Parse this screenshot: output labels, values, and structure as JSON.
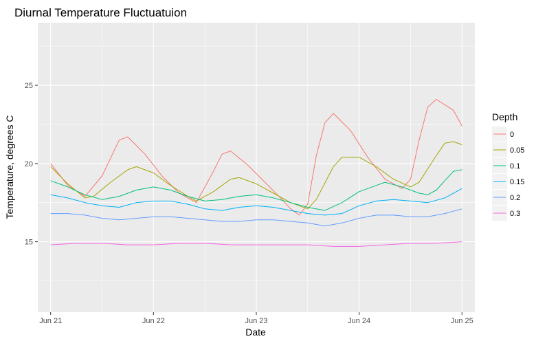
{
  "chart_data": {
    "type": "line",
    "title": "Diurnal Temperature Fluctuatuion",
    "xlabel": "Date",
    "ylabel": "Temperature, degrees C",
    "x_ticks": [
      "Jun 21",
      "Jun 22",
      "Jun 23",
      "Jun 24",
      "Jun 25"
    ],
    "y_ticks": [
      15,
      20,
      25
    ],
    "xlim": [
      "2016-06-20T21:00",
      "2016-06-25T03:00"
    ],
    "ylim": [
      10.5,
      29
    ],
    "grid": true,
    "legend": {
      "title": "Depth",
      "position": "right"
    },
    "series": [
      {
        "name": "0",
        "color": "#F8766D",
        "points": [
          [
            "06-21 00:00",
            20.0
          ],
          [
            "06-21 04:00",
            18.6
          ],
          [
            "06-21 08:00",
            17.9
          ],
          [
            "06-21 12:00",
            19.2
          ],
          [
            "06-21 16:00",
            21.5
          ],
          [
            "06-21 18:00",
            21.7
          ],
          [
            "06-21 22:00",
            20.6
          ],
          [
            "06-22 02:00",
            19.2
          ],
          [
            "06-22 06:00",
            18.1
          ],
          [
            "06-22 10:00",
            17.5
          ],
          [
            "06-22 14:00",
            19.5
          ],
          [
            "06-22 16:00",
            20.6
          ],
          [
            "06-22 18:00",
            20.8
          ],
          [
            "06-22 22:00",
            19.9
          ],
          [
            "06-23 02:00",
            18.8
          ],
          [
            "06-23 06:00",
            17.7
          ],
          [
            "06-23 08:00",
            17.1
          ],
          [
            "06-23 10:00",
            16.7
          ],
          [
            "06-23 12:00",
            17.4
          ],
          [
            "06-23 14:00",
            20.5
          ],
          [
            "06-23 16:00",
            22.6
          ],
          [
            "06-23 18:00",
            23.2
          ],
          [
            "06-23 22:00",
            22.1
          ],
          [
            "06-24 02:00",
            20.4
          ],
          [
            "06-24 06:00",
            19.0
          ],
          [
            "06-24 10:00",
            18.4
          ],
          [
            "06-24 12:00",
            19.0
          ],
          [
            "06-24 14:00",
            21.5
          ],
          [
            "06-24 16:00",
            23.6
          ],
          [
            "06-24 18:00",
            24.1
          ],
          [
            "06-24 22:00",
            23.4
          ],
          [
            "06-25 00:00",
            22.4
          ]
        ]
      },
      {
        "name": "0.05",
        "color": "#A3A500",
        "points": [
          [
            "06-21 00:00",
            19.8
          ],
          [
            "06-21 04:00",
            18.7
          ],
          [
            "06-21 08:00",
            17.8
          ],
          [
            "06-21 10:00",
            17.9
          ],
          [
            "06-21 14:00",
            18.8
          ],
          [
            "06-21 18:00",
            19.6
          ],
          [
            "06-21 20:00",
            19.8
          ],
          [
            "06-22 00:00",
            19.4
          ],
          [
            "06-22 04:00",
            18.6
          ],
          [
            "06-22 08:00",
            17.9
          ],
          [
            "06-22 10:00",
            17.6
          ],
          [
            "06-22 14:00",
            18.2
          ],
          [
            "06-22 18:00",
            19.0
          ],
          [
            "06-22 20:00",
            19.1
          ],
          [
            "06-23 00:00",
            18.7
          ],
          [
            "06-23 04:00",
            18.1
          ],
          [
            "06-23 08:00",
            17.5
          ],
          [
            "06-23 12:00",
            17.1
          ],
          [
            "06-23 14:00",
            17.7
          ],
          [
            "06-23 18:00",
            19.8
          ],
          [
            "06-23 20:00",
            20.4
          ],
          [
            "06-24 00:00",
            20.4
          ],
          [
            "06-24 04:00",
            19.8
          ],
          [
            "06-24 08:00",
            19.0
          ],
          [
            "06-24 12:00",
            18.5
          ],
          [
            "06-24 14:00",
            18.8
          ],
          [
            "06-24 18:00",
            20.5
          ],
          [
            "06-24 20:00",
            21.3
          ],
          [
            "06-24 22:00",
            21.4
          ],
          [
            "06-25 00:00",
            21.2
          ]
        ]
      },
      {
        "name": "0.1",
        "color": "#00BF7D",
        "points": [
          [
            "06-21 00:00",
            18.9
          ],
          [
            "06-21 04:00",
            18.5
          ],
          [
            "06-21 08:00",
            18.0
          ],
          [
            "06-21 12:00",
            17.7
          ],
          [
            "06-21 16:00",
            17.9
          ],
          [
            "06-21 20:00",
            18.3
          ],
          [
            "06-22 00:00",
            18.5
          ],
          [
            "06-22 04:00",
            18.3
          ],
          [
            "06-22 08:00",
            17.9
          ],
          [
            "06-22 12:00",
            17.6
          ],
          [
            "06-22 16:00",
            17.7
          ],
          [
            "06-22 20:00",
            17.9
          ],
          [
            "06-23 00:00",
            18.0
          ],
          [
            "06-23 04:00",
            17.8
          ],
          [
            "06-23 08:00",
            17.5
          ],
          [
            "06-23 12:00",
            17.2
          ],
          [
            "06-23 16:00",
            17.0
          ],
          [
            "06-23 20:00",
            17.5
          ],
          [
            "06-24 00:00",
            18.2
          ],
          [
            "06-24 04:00",
            18.6
          ],
          [
            "06-24 06:00",
            18.8
          ],
          [
            "06-24 10:00",
            18.5
          ],
          [
            "06-24 14:00",
            18.1
          ],
          [
            "06-24 16:00",
            18.0
          ],
          [
            "06-24 18:00",
            18.3
          ],
          [
            "06-24 20:00",
            18.9
          ],
          [
            "06-24 22:00",
            19.5
          ],
          [
            "06-25 00:00",
            19.6
          ]
        ]
      },
      {
        "name": "0.15",
        "color": "#00B0F6",
        "points": [
          [
            "06-21 00:00",
            18.0
          ],
          [
            "06-21 04:00",
            17.8
          ],
          [
            "06-21 08:00",
            17.5
          ],
          [
            "06-21 12:00",
            17.3
          ],
          [
            "06-21 16:00",
            17.2
          ],
          [
            "06-21 20:00",
            17.5
          ],
          [
            "06-22 00:00",
            17.6
          ],
          [
            "06-22 04:00",
            17.6
          ],
          [
            "06-22 08:00",
            17.4
          ],
          [
            "06-22 12:00",
            17.1
          ],
          [
            "06-22 16:00",
            17.0
          ],
          [
            "06-22 20:00",
            17.2
          ],
          [
            "06-23 00:00",
            17.3
          ],
          [
            "06-23 04:00",
            17.2
          ],
          [
            "06-23 08:00",
            17.0
          ],
          [
            "06-23 12:00",
            16.8
          ],
          [
            "06-23 16:00",
            16.7
          ],
          [
            "06-23 20:00",
            16.8
          ],
          [
            "06-24 00:00",
            17.3
          ],
          [
            "06-24 04:00",
            17.6
          ],
          [
            "06-24 08:00",
            17.7
          ],
          [
            "06-24 12:00",
            17.6
          ],
          [
            "06-24 16:00",
            17.5
          ],
          [
            "06-24 20:00",
            17.8
          ],
          [
            "06-25 00:00",
            18.4
          ]
        ]
      },
      {
        "name": "0.2",
        "color": "#619CFF",
        "points": [
          [
            "06-21 00:00",
            16.8
          ],
          [
            "06-21 04:00",
            16.8
          ],
          [
            "06-21 08:00",
            16.7
          ],
          [
            "06-21 12:00",
            16.5
          ],
          [
            "06-21 16:00",
            16.4
          ],
          [
            "06-21 20:00",
            16.5
          ],
          [
            "06-22 00:00",
            16.6
          ],
          [
            "06-22 04:00",
            16.6
          ],
          [
            "06-22 08:00",
            16.5
          ],
          [
            "06-22 12:00",
            16.4
          ],
          [
            "06-22 16:00",
            16.3
          ],
          [
            "06-22 20:00",
            16.3
          ],
          [
            "06-23 00:00",
            16.4
          ],
          [
            "06-23 04:00",
            16.4
          ],
          [
            "06-23 08:00",
            16.3
          ],
          [
            "06-23 12:00",
            16.2
          ],
          [
            "06-23 16:00",
            16.0
          ],
          [
            "06-23 20:00",
            16.2
          ],
          [
            "06-24 00:00",
            16.5
          ],
          [
            "06-24 04:00",
            16.7
          ],
          [
            "06-24 08:00",
            16.7
          ],
          [
            "06-24 12:00",
            16.6
          ],
          [
            "06-24 16:00",
            16.6
          ],
          [
            "06-24 20:00",
            16.8
          ],
          [
            "06-25 00:00",
            17.1
          ]
        ]
      },
      {
        "name": "0.3",
        "color": "#F564E3",
        "points": [
          [
            "06-21 00:00",
            14.8
          ],
          [
            "06-21 06:00",
            14.9
          ],
          [
            "06-21 12:00",
            14.9
          ],
          [
            "06-21 18:00",
            14.8
          ],
          [
            "06-22 00:00",
            14.8
          ],
          [
            "06-22 06:00",
            14.9
          ],
          [
            "06-22 12:00",
            14.9
          ],
          [
            "06-22 18:00",
            14.8
          ],
          [
            "06-23 00:00",
            14.8
          ],
          [
            "06-23 06:00",
            14.8
          ],
          [
            "06-23 12:00",
            14.8
          ],
          [
            "06-23 18:00",
            14.7
          ],
          [
            "06-24 00:00",
            14.7
          ],
          [
            "06-24 06:00",
            14.8
          ],
          [
            "06-24 12:00",
            14.9
          ],
          [
            "06-24 18:00",
            14.9
          ],
          [
            "06-25 00:00",
            15.0
          ]
        ]
      }
    ]
  }
}
